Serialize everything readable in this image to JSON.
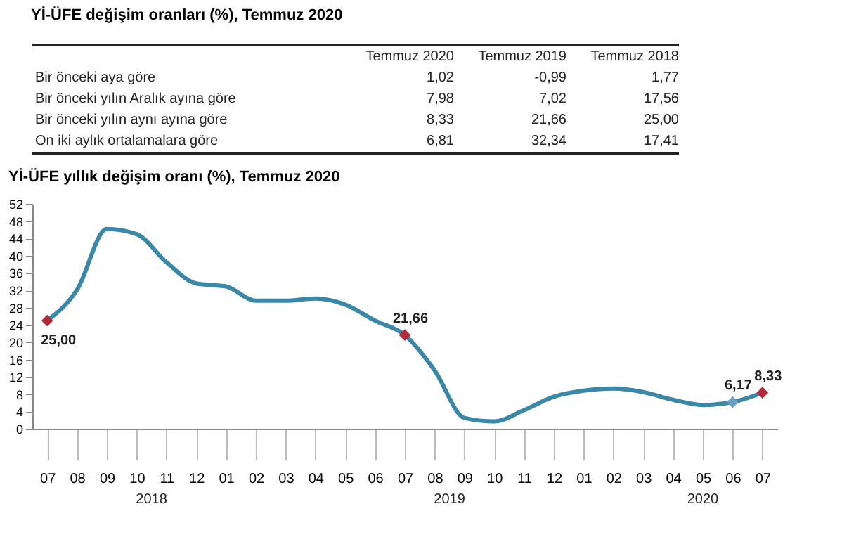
{
  "chart_data": [
    {
      "type": "other",
      "title": "Yİ-ÜFE değişim oranları (%), Temmuz 2020",
      "categories": [
        "Temmuz 2020",
        "Temmuz 2019",
        "Temmuz 2018"
      ],
      "y_categories": [
        "Bir önceki aya göre",
        "Bir önceki yılın Aralık ayına göre",
        "Bir önceki yılın aynı ayına göre",
        "On iki aylık ortalamalara göre"
      ],
      "cell_labels": [
        [
          "1,02",
          "-0,99",
          "1,77"
        ],
        [
          "7,98",
          "7,02",
          "17,56"
        ],
        [
          "8,33",
          "21,66",
          "25,00"
        ],
        [
          "6,81",
          "32,34",
          "17,41"
        ]
      ]
    },
    {
      "type": "line",
      "title": "Yİ-ÜFE yıllık değişim oranı (%), Temmuz 2020",
      "categories": [
        "07",
        "08",
        "09",
        "10",
        "11",
        "12",
        "01",
        "02",
        "03",
        "04",
        "05",
        "06",
        "07",
        "08",
        "09",
        "10",
        "11",
        "12",
        "01",
        "02",
        "03",
        "04",
        "05",
        "06",
        "07"
      ],
      "series": [
        {
          "type": "line",
          "color": "#3b87a8",
          "values": [
            25.0,
            32.1,
            46.2,
            45.0,
            38.5,
            33.6,
            32.9,
            29.6,
            29.6,
            30.1,
            28.7,
            25.0,
            21.66,
            13.5,
            2.5,
            1.7,
            4.3,
            7.4,
            8.8,
            9.3,
            8.5,
            6.7,
            5.5,
            6.17,
            8.33
          ],
          "value_labels": [
            "25,00",
            null,
            null,
            null,
            null,
            null,
            null,
            null,
            null,
            null,
            null,
            null,
            "21,66",
            null,
            null,
            null,
            null,
            null,
            null,
            null,
            null,
            null,
            null,
            "6,17",
            "8,33"
          ]
        },
        {
          "type": "scatter",
          "color": "#b22a3a",
          "marker": "diamond",
          "values": [
            25.0,
            null,
            null,
            null,
            null,
            null,
            null,
            null,
            null,
            null,
            null,
            null,
            21.66,
            null,
            null,
            null,
            null,
            null,
            null,
            null,
            null,
            null,
            null,
            null,
            8.33
          ]
        },
        {
          "type": "scatter",
          "color": "#6a9fc8",
          "marker": "diamond",
          "values": [
            null,
            null,
            null,
            null,
            null,
            null,
            null,
            null,
            null,
            null,
            null,
            null,
            null,
            null,
            null,
            null,
            null,
            null,
            null,
            null,
            null,
            null,
            null,
            6.17,
            null
          ]
        }
      ],
      "annotations": [
        "2018",
        "2019",
        "2020"
      ],
      "ylim": [
        0,
        52
      ],
      "yticks": [
        0,
        4,
        8,
        12,
        16,
        20,
        24,
        28,
        32,
        36,
        40,
        44,
        48,
        52
      ],
      "grid": false
    }
  ]
}
